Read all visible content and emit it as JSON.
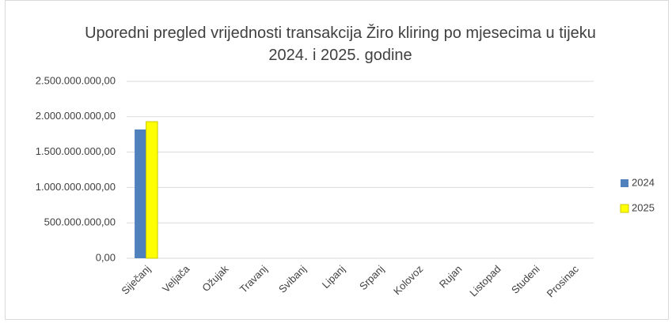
{
  "chart_data": {
    "type": "bar",
    "title": "Uporedni pregled vrijednosti transakcija Žiro kliring po mjesecima u tijeku 2024. i 2025. godine",
    "categories": [
      "Siječanj",
      "Veljača",
      "Ožujak",
      "Travanj",
      "Svibanj",
      "Lipanj",
      "Srpanj",
      "Kolovoz",
      "Rujan",
      "Listopad",
      "Studeni",
      "Prosinac"
    ],
    "series": [
      {
        "name": "2024",
        "color": "#4f81bd",
        "values": [
          1820000000,
          null,
          null,
          null,
          null,
          null,
          null,
          null,
          null,
          null,
          null,
          null
        ]
      },
      {
        "name": "2025",
        "color": "#ffff00",
        "values": [
          1930000000,
          null,
          null,
          null,
          null,
          null,
          null,
          null,
          null,
          null,
          null,
          null
        ]
      }
    ],
    "ylim": [
      0,
      2500000000
    ],
    "yticks": [
      {
        "value": 0,
        "label": "0,00"
      },
      {
        "value": 500000000,
        "label": "500.000.000,00"
      },
      {
        "value": 1000000000,
        "label": "1.000.000.000,00"
      },
      {
        "value": 1500000000,
        "label": "1.500.000.000,00"
      },
      {
        "value": 2000000000,
        "label": "2.000.000.000,00"
      },
      {
        "value": 2500000000,
        "label": "2.500.000.000,00"
      }
    ],
    "grid": true,
    "legend": "right"
  }
}
